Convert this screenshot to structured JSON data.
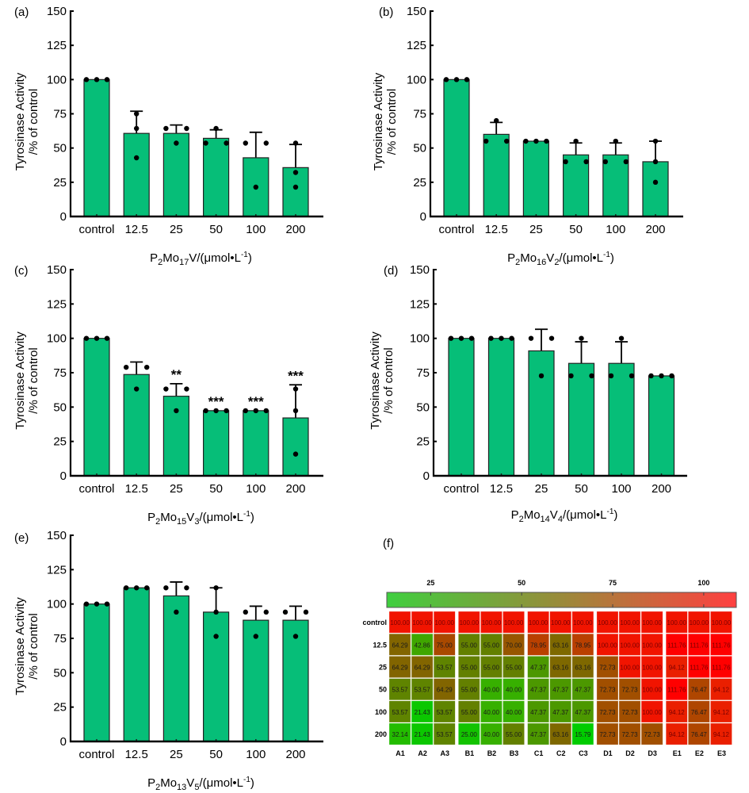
{
  "chart_data": [
    {
      "type": "bar",
      "panel": "(a)",
      "title": "",
      "categories": [
        "control",
        "12.5",
        "25",
        "50",
        "100",
        "200"
      ],
      "values": [
        100,
        60.7,
        60.7,
        57.1,
        42.9,
        35.7
      ],
      "error_upper": [
        100,
        76.9,
        66.8,
        63.3,
        61.5,
        52.6
      ],
      "points": [
        [
          100,
          100,
          100
        ],
        [
          64.29,
          42.86,
          75.0
        ],
        [
          64.29,
          64.29,
          53.57
        ],
        [
          53.57,
          53.57,
          64.29
        ],
        [
          53.57,
          21.43,
          53.57
        ],
        [
          32.14,
          21.43,
          53.57
        ]
      ],
      "significance": [
        "",
        "",
        "",
        "",
        "",
        ""
      ],
      "xlabel": {
        "pre": "P",
        "s1": "2",
        "mid": "Mo",
        "s2": "17",
        "post": "V",
        "s3": "",
        "unit": "/(μmol•L",
        "sup": "-1",
        "close": ")"
      },
      "ylabel": [
        "Tyrosinase Activity",
        "/% of control"
      ],
      "yticks": [
        0,
        25,
        50,
        75,
        100,
        125,
        150
      ],
      "ylim": [
        0,
        150
      ],
      "bar_color": "#06BE78"
    },
    {
      "type": "bar",
      "panel": "(b)",
      "title": "",
      "categories": [
        "control",
        "12.5",
        "25",
        "50",
        "100",
        "200"
      ],
      "values": [
        100,
        60,
        55,
        45,
        45,
        40
      ],
      "error_upper": [
        100,
        68.7,
        55,
        53.7,
        53.7,
        55
      ],
      "points": [
        [
          100,
          100,
          100
        ],
        [
          55,
          55,
          70
        ],
        [
          55,
          55,
          55
        ],
        [
          55,
          40,
          40
        ],
        [
          55,
          40,
          40
        ],
        [
          25,
          40,
          55
        ]
      ],
      "significance": [
        "",
        "",
        "",
        "",
        "",
        ""
      ],
      "xlabel": {
        "pre": "P",
        "s1": "2",
        "mid": "Mo",
        "s2": "16",
        "post": "V",
        "s3": "2",
        "unit": "/(μmol•L",
        "sup": "-1",
        "close": ")"
      },
      "ylabel": [
        "Tyrosinase Activity",
        "/% of control"
      ],
      "yticks": [
        0,
        25,
        50,
        75,
        100,
        125,
        150
      ],
      "ylim": [
        0,
        150
      ],
      "bar_color": "#06BE78"
    },
    {
      "type": "bar",
      "panel": "(c)",
      "title": "",
      "categories": [
        "control",
        "12.5",
        "25",
        "50",
        "100",
        "200"
      ],
      "values": [
        100,
        73.7,
        57.9,
        47.4,
        47.4,
        42.1
      ],
      "error_upper": [
        100,
        82.8,
        67,
        47.4,
        47.4,
        66.2
      ],
      "points": [
        [
          100,
          100,
          100
        ],
        [
          78.95,
          63.16,
          78.95
        ],
        [
          47.37,
          63.16,
          63.16
        ],
        [
          47.37,
          47.37,
          47.37
        ],
        [
          47.37,
          47.37,
          47.37
        ],
        [
          47.37,
          63.16,
          15.79
        ]
      ],
      "significance": [
        "",
        "",
        "**",
        "***",
        "***",
        "***"
      ],
      "xlabel": {
        "pre": "P",
        "s1": "2",
        "mid": "Mo",
        "s2": "15",
        "post": "V",
        "s3": "3",
        "unit": "/(μmol•L",
        "sup": "-1",
        "close": ")"
      },
      "ylabel": [
        "Tyrosinase Activity",
        "/% of control"
      ],
      "yticks": [
        0,
        25,
        50,
        75,
        100,
        125,
        150
      ],
      "ylim": [
        0,
        150
      ],
      "bar_color": "#06BE78"
    },
    {
      "type": "bar",
      "panel": "(d)",
      "title": "",
      "categories": [
        "control",
        "12.5",
        "25",
        "50",
        "100",
        "200"
      ],
      "values": [
        100,
        100,
        90.9,
        81.8,
        81.8,
        72.7
      ],
      "error_upper": [
        100,
        100,
        106.6,
        97.5,
        97.5,
        72.7
      ],
      "points": [
        [
          100,
          100,
          100
        ],
        [
          100,
          100,
          100
        ],
        [
          72.73,
          100,
          100
        ],
        [
          72.73,
          72.73,
          100
        ],
        [
          72.73,
          72.73,
          100
        ],
        [
          72.73,
          72.73,
          72.73
        ]
      ],
      "significance": [
        "",
        "",
        "",
        "",
        "",
        ""
      ],
      "xlabel": {
        "pre": "P",
        "s1": "2",
        "mid": "Mo",
        "s2": "14",
        "post": "V",
        "s3": "4",
        "unit": "/(μmol•L",
        "sup": "-1",
        "close": ")"
      },
      "ylabel": [
        "Tyrosinase Activity",
        "/% of control"
      ],
      "yticks": [
        0,
        25,
        50,
        75,
        100,
        125,
        150
      ],
      "ylim": [
        0,
        150
      ],
      "bar_color": "#06BE78"
    },
    {
      "type": "bar",
      "panel": "(e)",
      "title": "",
      "categories": [
        "control",
        "12.5",
        "25",
        "50",
        "100",
        "200"
      ],
      "values": [
        100,
        111.8,
        105.9,
        94.1,
        88.2,
        88.2
      ],
      "error_upper": [
        100,
        111.8,
        116,
        111.8,
        98.4,
        98.4
      ],
      "points": [
        [
          100,
          100,
          100
        ],
        [
          111.76,
          111.76,
          111.76
        ],
        [
          94.12,
          111.76,
          111.76
        ],
        [
          111.76,
          76.47,
          94.12
        ],
        [
          94.12,
          76.47,
          94.12
        ],
        [
          94.12,
          76.47,
          94.12
        ]
      ],
      "significance": [
        "",
        "",
        "",
        "",
        "",
        ""
      ],
      "xlabel": {
        "pre": "P",
        "s1": "2",
        "mid": "Mo",
        "s2": "13",
        "post": "V",
        "s3": "5",
        "unit": "/(μmol•L",
        "sup": "-1",
        "close": ")"
      },
      "ylabel": [
        "Tyrosinase Activity",
        "/% of control"
      ],
      "yticks": [
        0,
        25,
        50,
        75,
        100,
        125,
        150
      ],
      "ylim": [
        0,
        150
      ],
      "bar_color": "#06BE78"
    },
    {
      "type": "heatmap",
      "panel": "(f)",
      "rows": [
        "control",
        "12.5",
        "25",
        "50",
        "100",
        "200"
      ],
      "columns": [
        "A1",
        "A2",
        "A3",
        "B1",
        "B2",
        "B3",
        "C1",
        "C2",
        "C3",
        "D1",
        "D2",
        "D3",
        "E1",
        "E2",
        "E3"
      ],
      "column_groups": [
        [
          "A1",
          "A2",
          "A3"
        ],
        [
          "B1",
          "B2",
          "B3"
        ],
        [
          "C1",
          "C2",
          "C3"
        ],
        [
          "D1",
          "D2",
          "D3"
        ],
        [
          "E1",
          "E2",
          "E3"
        ]
      ],
      "values": [
        [
          100.0,
          100.0,
          100.0,
          100.0,
          100.0,
          100.0,
          100.0,
          100.0,
          100.0,
          100.0,
          100.0,
          100.0,
          100.0,
          100.0,
          100.0
        ],
        [
          64.29,
          42.86,
          75.0,
          55.0,
          55.0,
          70.0,
          78.95,
          63.16,
          78.95,
          100.0,
          100.0,
          100.0,
          111.76,
          111.76,
          111.76
        ],
        [
          64.29,
          64.29,
          53.57,
          55.0,
          55.0,
          55.0,
          47.37,
          63.16,
          63.16,
          72.73,
          100.0,
          100.0,
          94.12,
          111.76,
          111.76
        ],
        [
          53.57,
          53.57,
          64.29,
          55.0,
          40.0,
          40.0,
          47.37,
          47.37,
          47.37,
          72.73,
          72.73,
          100.0,
          111.76,
          76.47,
          94.12
        ],
        [
          53.57,
          21.43,
          53.57,
          55.0,
          40.0,
          40.0,
          47.37,
          47.37,
          47.37,
          72.73,
          72.73,
          100.0,
          94.12,
          76.47,
          94.12
        ],
        [
          32.14,
          21.43,
          53.57,
          25.0,
          40.0,
          55.0,
          47.37,
          63.16,
          15.79,
          72.73,
          72.73,
          72.73,
          94.12,
          76.47,
          94.12
        ]
      ],
      "colorbar": {
        "ticks": [
          25,
          50,
          75,
          100
        ],
        "range": [
          15.79,
          111.76
        ],
        "low_color": "#00CC00",
        "high_color": "#FF0000"
      }
    }
  ]
}
